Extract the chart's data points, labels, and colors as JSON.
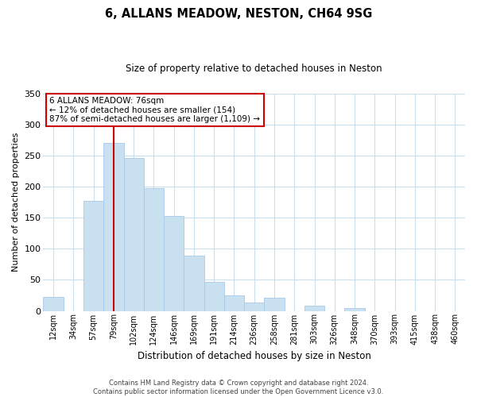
{
  "title": "6, ALLANS MEADOW, NESTON, CH64 9SG",
  "subtitle": "Size of property relative to detached houses in Neston",
  "xlabel": "Distribution of detached houses by size in Neston",
  "ylabel": "Number of detached properties",
  "bar_labels": [
    "12sqm",
    "34sqm",
    "57sqm",
    "79sqm",
    "102sqm",
    "124sqm",
    "146sqm",
    "169sqm",
    "191sqm",
    "214sqm",
    "236sqm",
    "258sqm",
    "281sqm",
    "303sqm",
    "326sqm",
    "348sqm",
    "370sqm",
    "393sqm",
    "415sqm",
    "438sqm",
    "460sqm"
  ],
  "bar_values": [
    23,
    0,
    177,
    270,
    246,
    198,
    153,
    89,
    47,
    25,
    14,
    21,
    0,
    8,
    0,
    5,
    0,
    0,
    0,
    0,
    0
  ],
  "bar_color": "#c9e0f0",
  "bar_edge_color": "#a8c8e8",
  "vline_x": 3,
  "vline_color": "#cc0000",
  "ylim": [
    0,
    350
  ],
  "yticks": [
    0,
    50,
    100,
    150,
    200,
    250,
    300,
    350
  ],
  "annotation_line1": "6 ALLANS MEADOW: 76sqm",
  "annotation_line2": "← 12% of detached houses are smaller (154)",
  "annotation_line3": "87% of semi-detached houses are larger (1,109) →",
  "annotation_box_color": "#ffffff",
  "annotation_box_edge": "#cc0000",
  "footer_line1": "Contains HM Land Registry data © Crown copyright and database right 2024.",
  "footer_line2": "Contains public sector information licensed under the Open Government Licence v3.0.",
  "background_color": "#ffffff",
  "grid_color": "#c8dff0",
  "fig_width": 6.0,
  "fig_height": 5.0,
  "dpi": 100
}
